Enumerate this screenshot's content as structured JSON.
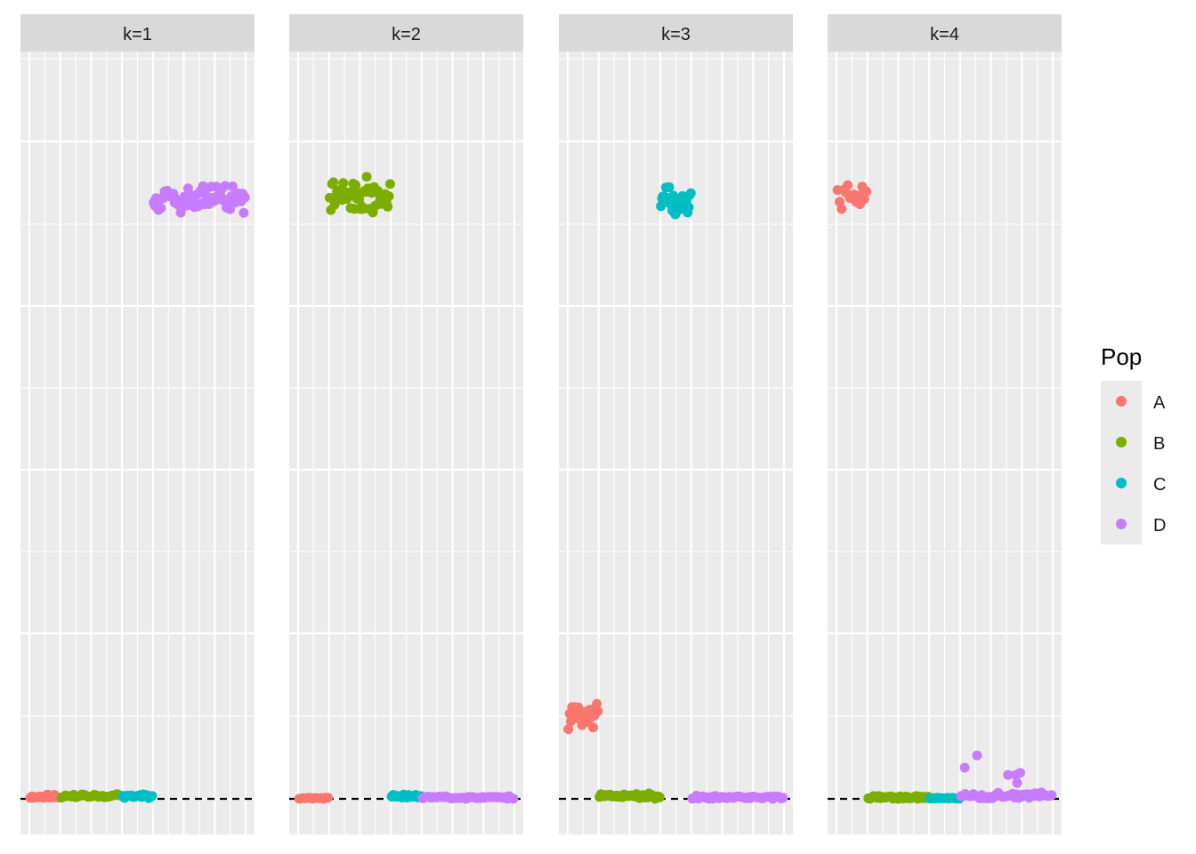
{
  "chart_data": {
    "type": "scatter",
    "facet_variable": "k",
    "axis_text_shown": false,
    "reference_line": {
      "y": 0,
      "style": "dashed"
    },
    "y_range": [
      0,
      1
    ],
    "x_range": [
      0,
      7
    ],
    "facets": [
      {
        "label": "k=1",
        "groups": [
          {
            "pop": "A",
            "x_range": [
              0.0,
              1.0
            ],
            "y_mean": 0.003,
            "y_sd": 0.002,
            "n": 18,
            "seed": 11
          },
          {
            "pop": "B",
            "x_range": [
              1.0,
              3.0
            ],
            "y_mean": 0.004,
            "y_sd": 0.002,
            "n": 30,
            "seed": 12
          },
          {
            "pop": "C",
            "x_range": [
              3.0,
              4.0
            ],
            "y_mean": 0.004,
            "y_sd": 0.002,
            "n": 18,
            "seed": 13
          },
          {
            "pop": "D",
            "x_range": [
              4.0,
              7.0
            ],
            "y_mean": 0.83,
            "y_sd": 0.015,
            "n": 75,
            "seed": 14
          }
        ]
      },
      {
        "label": "k=2",
        "groups": [
          {
            "pop": "A",
            "x_range": [
              0.0,
              1.0
            ],
            "y_mean": 0.001,
            "y_sd": 0.0008,
            "n": 14,
            "seed": 21
          },
          {
            "pop": "B",
            "x_range": [
              1.0,
              3.0
            ],
            "y_mean": 0.832,
            "y_sd": 0.015,
            "n": 50,
            "seed": 22
          },
          {
            "pop": "C",
            "x_range": [
              3.0,
              4.0
            ],
            "y_mean": 0.004,
            "y_sd": 0.002,
            "n": 18,
            "seed": 23
          },
          {
            "pop": "D",
            "x_range": [
              4.0,
              7.0
            ],
            "y_mean": 0.002,
            "y_sd": 0.0015,
            "n": 45,
            "seed": 24
          }
        ]
      },
      {
        "label": "k=3",
        "groups": [
          {
            "pop": "A",
            "x_range": [
              0.0,
              1.0
            ],
            "y_mean": 0.115,
            "y_sd": 0.012,
            "n": 25,
            "seed": 31
          },
          {
            "pop": "B",
            "x_range": [
              1.0,
              3.0
            ],
            "y_mean": 0.004,
            "y_sd": 0.003,
            "n": 40,
            "seed": 32
          },
          {
            "pop": "C",
            "x_range": [
              3.0,
              4.0
            ],
            "y_mean": 0.828,
            "y_sd": 0.012,
            "n": 30,
            "seed": 33
          },
          {
            "pop": "D",
            "x_range": [
              4.0,
              7.0
            ],
            "y_mean": 0.002,
            "y_sd": 0.0015,
            "n": 45,
            "seed": 34
          }
        ]
      },
      {
        "label": "k=4",
        "groups": [
          {
            "pop": "A",
            "x_range": [
              0.0,
              1.0
            ],
            "y_mean": 0.83,
            "y_sd": 0.012,
            "n": 15,
            "seed": 41
          },
          {
            "pop": "B",
            "x_range": [
              1.0,
              3.0
            ],
            "y_mean": 0.002,
            "y_sd": 0.0015,
            "n": 35,
            "seed": 42
          },
          {
            "pop": "C",
            "x_range": [
              3.0,
              4.0
            ],
            "y_mean": 0.001,
            "y_sd": 0.0005,
            "n": 18,
            "seed": 43
          },
          {
            "pop": "D",
            "x_range": [
              4.0,
              7.0
            ],
            "y_mean": 0.004,
            "y_sd": 0.003,
            "n": 45,
            "seed": 44,
            "outliers": [
              {
                "x": 4.15,
                "y": 0.043
              },
              {
                "x": 4.55,
                "y": 0.06
              },
              {
                "x": 5.55,
                "y": 0.033
              },
              {
                "x": 5.8,
                "y": 0.033
              },
              {
                "x": 5.85,
                "y": 0.022
              },
              {
                "x": 5.95,
                "y": 0.036
              }
            ]
          }
        ]
      }
    ],
    "legend": {
      "title": "Pop",
      "position": "right",
      "entries": [
        {
          "label": "A",
          "color": "#F8766D"
        },
        {
          "label": "B",
          "color": "#7CAE00"
        },
        {
          "label": "C",
          "color": "#00BFC4"
        },
        {
          "label": "D",
          "color": "#C77CFF"
        }
      ]
    }
  }
}
